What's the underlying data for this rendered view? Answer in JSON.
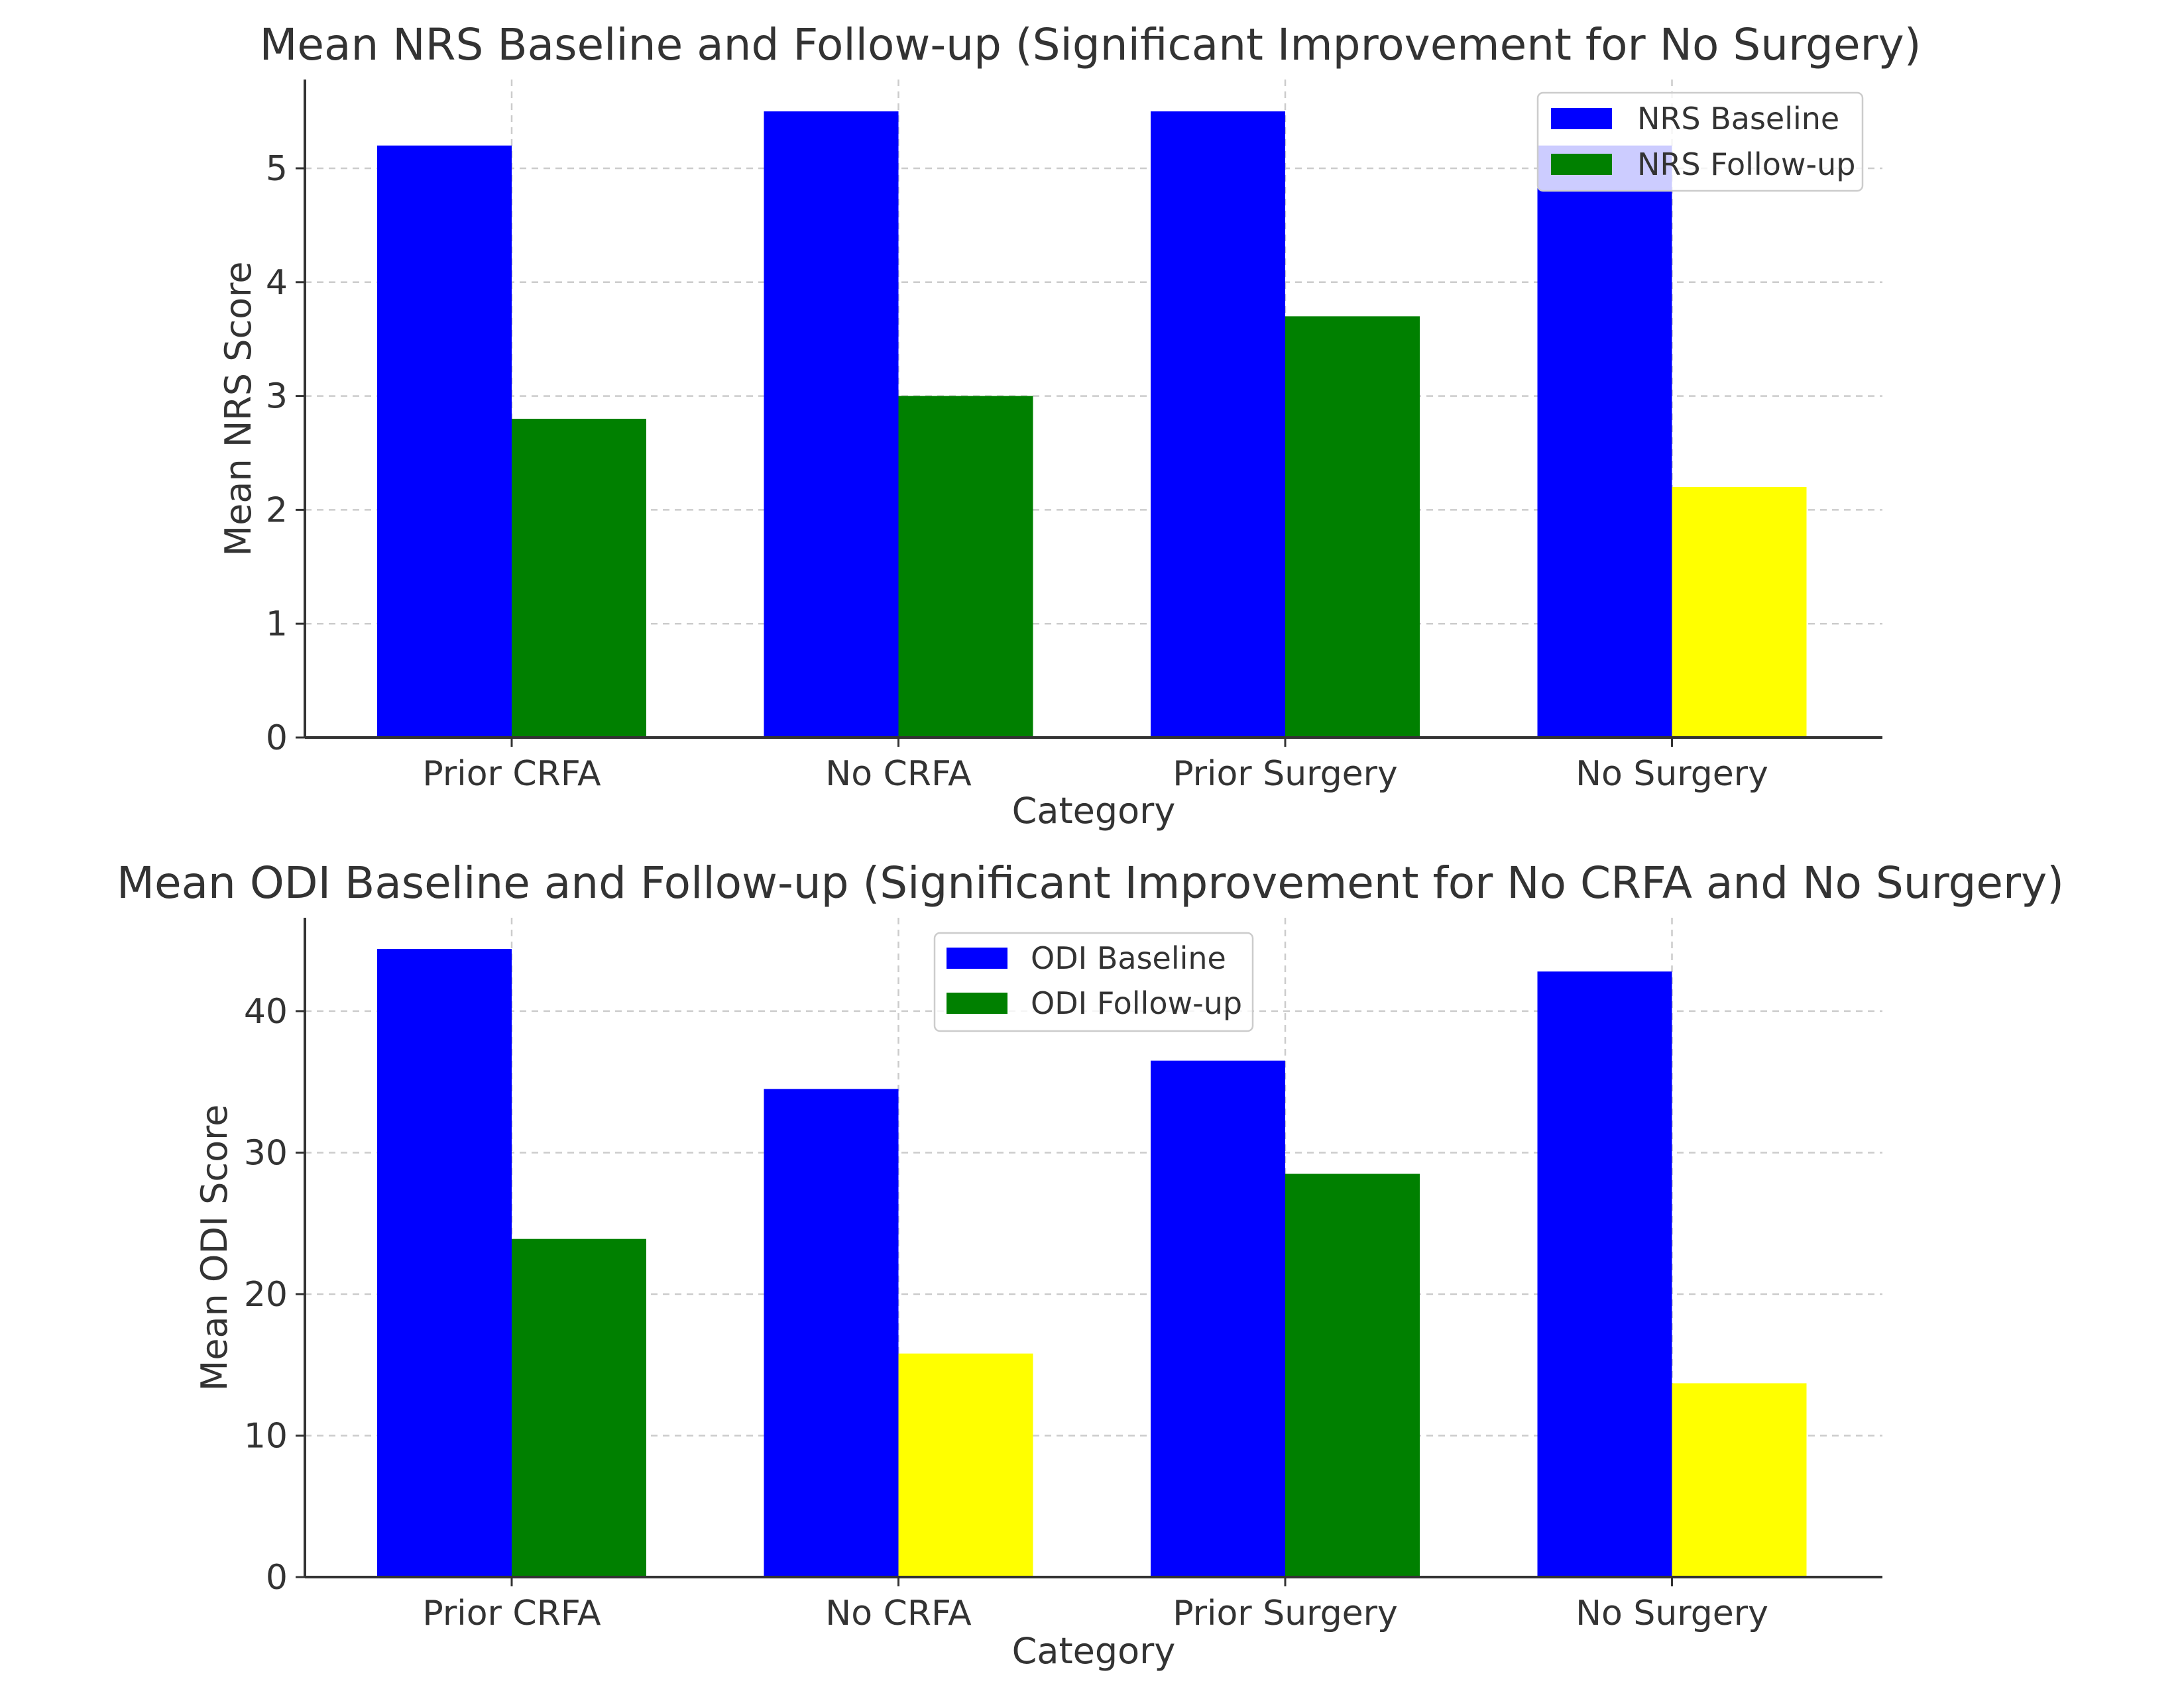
{
  "chart_data": [
    {
      "type": "bar",
      "title": "Mean NRS Baseline and Follow-up (Significant Improvement for No Surgery)",
      "xlabel": "Category",
      "ylabel": "Mean NRS Score",
      "categories": [
        "Prior CRFA",
        "No CRFA",
        "Prior Surgery",
        "No Surgery"
      ],
      "ylim": [
        0,
        5.78
      ],
      "yticks": [
        0,
        1,
        2,
        3,
        4,
        5
      ],
      "grid": true,
      "legend_position": "top-right",
      "series": [
        {
          "name": "NRS Baseline",
          "color": "#0000ff",
          "values": [
            5.2,
            5.5,
            5.5,
            5.2
          ],
          "bar_colors": [
            "#0000ff",
            "#0000ff",
            "#0000ff",
            "#0000ff"
          ]
        },
        {
          "name": "NRS Follow-up",
          "color": "#008000",
          "values": [
            2.8,
            3.0,
            3.7,
            2.2
          ],
          "bar_colors": [
            "#008000",
            "#008000",
            "#008000",
            "#ffff00"
          ]
        }
      ]
    },
    {
      "type": "bar",
      "title": "Mean ODI Baseline and Follow-up (Significant Improvement for No CRFA and No Surgery)",
      "xlabel": "Category",
      "ylabel": "Mean ODI Score",
      "categories": [
        "Prior CRFA",
        "No CRFA",
        "Prior Surgery",
        "No Surgery"
      ],
      "ylim": [
        0,
        46.6
      ],
      "yticks": [
        0,
        10,
        20,
        30,
        40
      ],
      "grid": true,
      "legend_position": "top-center",
      "series": [
        {
          "name": "ODI Baseline",
          "color": "#0000ff",
          "values": [
            44.4,
            34.5,
            36.5,
            42.8
          ],
          "bar_colors": [
            "#0000ff",
            "#0000ff",
            "#0000ff",
            "#0000ff"
          ]
        },
        {
          "name": "ODI Follow-up",
          "color": "#008000",
          "values": [
            23.9,
            15.8,
            28.5,
            13.7
          ],
          "bar_colors": [
            "#008000",
            "#ffff00",
            "#008000",
            "#ffff00"
          ]
        }
      ]
    }
  ]
}
